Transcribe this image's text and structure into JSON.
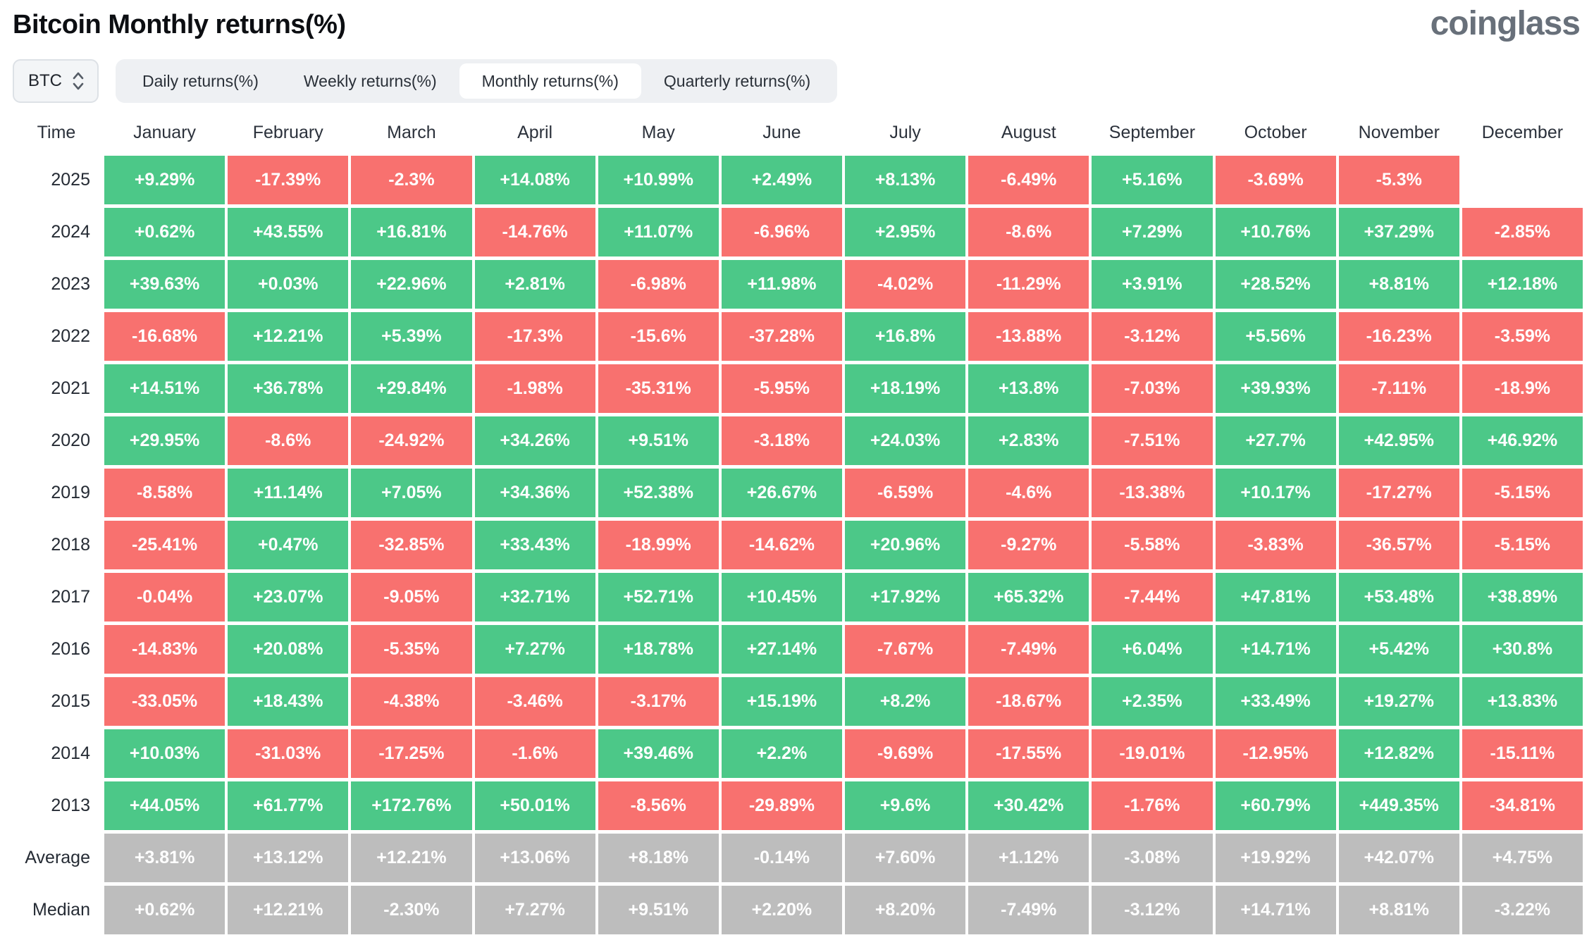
{
  "page": {
    "title": "Bitcoin Monthly returns(%)",
    "logo": "coinglass"
  },
  "controls": {
    "symbol_selector": {
      "value": "BTC"
    },
    "tabs": [
      {
        "label": "Daily returns(%)",
        "active": false
      },
      {
        "label": "Weekly returns(%)",
        "active": false
      },
      {
        "label": "Monthly returns(%)",
        "active": true
      },
      {
        "label": "Quarterly returns(%)",
        "active": false
      }
    ]
  },
  "colors": {
    "positive": "#4cc888",
    "negative": "#f8716f",
    "neutral": "#bdbdbd"
  },
  "chart_data": {
    "type": "heatmap",
    "title": "Bitcoin Monthly returns(%)",
    "time_column_header": "Time",
    "columns": [
      "January",
      "February",
      "March",
      "April",
      "May",
      "June",
      "July",
      "August",
      "September",
      "October",
      "November",
      "December"
    ],
    "rows": [
      {
        "label": "2025",
        "neutral": false,
        "values": [
          "+9.29%",
          "-17.39%",
          "-2.3%",
          "+14.08%",
          "+10.99%",
          "+2.49%",
          "+8.13%",
          "-6.49%",
          "+5.16%",
          "-3.69%",
          "-5.3%",
          null
        ]
      },
      {
        "label": "2024",
        "neutral": false,
        "values": [
          "+0.62%",
          "+43.55%",
          "+16.81%",
          "-14.76%",
          "+11.07%",
          "-6.96%",
          "+2.95%",
          "-8.6%",
          "+7.29%",
          "+10.76%",
          "+37.29%",
          "-2.85%"
        ]
      },
      {
        "label": "2023",
        "neutral": false,
        "values": [
          "+39.63%",
          "+0.03%",
          "+22.96%",
          "+2.81%",
          "-6.98%",
          "+11.98%",
          "-4.02%",
          "-11.29%",
          "+3.91%",
          "+28.52%",
          "+8.81%",
          "+12.18%"
        ]
      },
      {
        "label": "2022",
        "neutral": false,
        "values": [
          "-16.68%",
          "+12.21%",
          "+5.39%",
          "-17.3%",
          "-15.6%",
          "-37.28%",
          "+16.8%",
          "-13.88%",
          "-3.12%",
          "+5.56%",
          "-16.23%",
          "-3.59%"
        ]
      },
      {
        "label": "2021",
        "neutral": false,
        "values": [
          "+14.51%",
          "+36.78%",
          "+29.84%",
          "-1.98%",
          "-35.31%",
          "-5.95%",
          "+18.19%",
          "+13.8%",
          "-7.03%",
          "+39.93%",
          "-7.11%",
          "-18.9%"
        ]
      },
      {
        "label": "2020",
        "neutral": false,
        "values": [
          "+29.95%",
          "-8.6%",
          "-24.92%",
          "+34.26%",
          "+9.51%",
          "-3.18%",
          "+24.03%",
          "+2.83%",
          "-7.51%",
          "+27.7%",
          "+42.95%",
          "+46.92%"
        ]
      },
      {
        "label": "2019",
        "neutral": false,
        "values": [
          "-8.58%",
          "+11.14%",
          "+7.05%",
          "+34.36%",
          "+52.38%",
          "+26.67%",
          "-6.59%",
          "-4.6%",
          "-13.38%",
          "+10.17%",
          "-17.27%",
          "-5.15%"
        ]
      },
      {
        "label": "2018",
        "neutral": false,
        "values": [
          "-25.41%",
          "+0.47%",
          "-32.85%",
          "+33.43%",
          "-18.99%",
          "-14.62%",
          "+20.96%",
          "-9.27%",
          "-5.58%",
          "-3.83%",
          "-36.57%",
          "-5.15%"
        ]
      },
      {
        "label": "2017",
        "neutral": false,
        "values": [
          "-0.04%",
          "+23.07%",
          "-9.05%",
          "+32.71%",
          "+52.71%",
          "+10.45%",
          "+17.92%",
          "+65.32%",
          "-7.44%",
          "+47.81%",
          "+53.48%",
          "+38.89%"
        ]
      },
      {
        "label": "2016",
        "neutral": false,
        "values": [
          "-14.83%",
          "+20.08%",
          "-5.35%",
          "+7.27%",
          "+18.78%",
          "+27.14%",
          "-7.67%",
          "-7.49%",
          "+6.04%",
          "+14.71%",
          "+5.42%",
          "+30.8%"
        ]
      },
      {
        "label": "2015",
        "neutral": false,
        "values": [
          "-33.05%",
          "+18.43%",
          "-4.38%",
          "-3.46%",
          "-3.17%",
          "+15.19%",
          "+8.2%",
          "-18.67%",
          "+2.35%",
          "+33.49%",
          "+19.27%",
          "+13.83%"
        ]
      },
      {
        "label": "2014",
        "neutral": false,
        "values": [
          "+10.03%",
          "-31.03%",
          "-17.25%",
          "-1.6%",
          "+39.46%",
          "+2.2%",
          "-9.69%",
          "-17.55%",
          "-19.01%",
          "-12.95%",
          "+12.82%",
          "-15.11%"
        ]
      },
      {
        "label": "2013",
        "neutral": false,
        "values": [
          "+44.05%",
          "+61.77%",
          "+172.76%",
          "+50.01%",
          "-8.56%",
          "-29.89%",
          "+9.6%",
          "+30.42%",
          "-1.76%",
          "+60.79%",
          "+449.35%",
          "-34.81%"
        ]
      },
      {
        "label": "Average",
        "neutral": true,
        "values": [
          "+3.81%",
          "+13.12%",
          "+12.21%",
          "+13.06%",
          "+8.18%",
          "-0.14%",
          "+7.60%",
          "+1.12%",
          "-3.08%",
          "+19.92%",
          "+42.07%",
          "+4.75%"
        ]
      },
      {
        "label": "Median",
        "neutral": true,
        "values": [
          "+0.62%",
          "+12.21%",
          "-2.30%",
          "+7.27%",
          "+9.51%",
          "+2.20%",
          "+8.20%",
          "-7.49%",
          "-3.12%",
          "+14.71%",
          "+8.81%",
          "-3.22%"
        ]
      }
    ]
  }
}
